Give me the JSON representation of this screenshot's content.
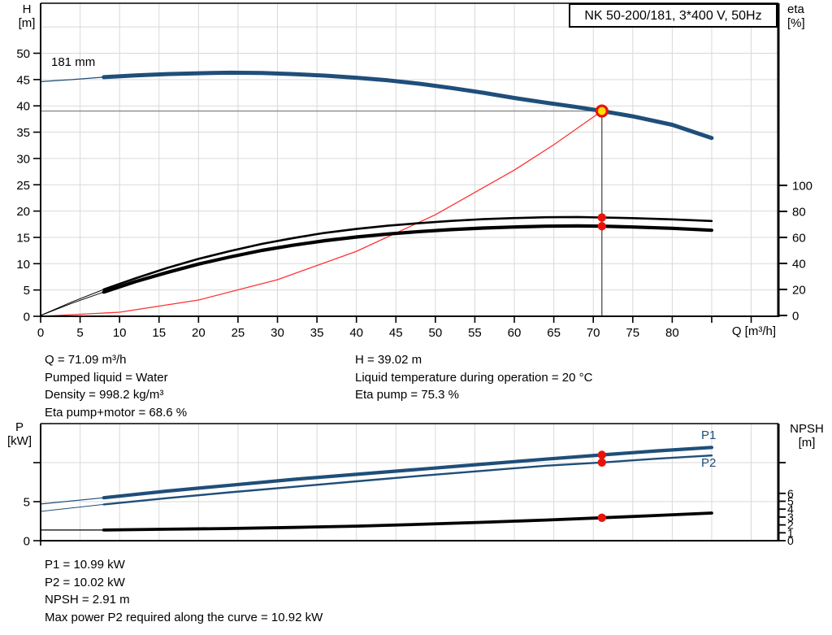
{
  "title_box": "NK 50-200/181, 3*400 V, 50Hz",
  "colors": {
    "curve_blue": "#1f4e79",
    "curve_black": "#000000",
    "system_red": "#ff3232",
    "dot_red": "#e8140c",
    "op_fill": "#ffdf00",
    "grid": "#d9d9d9",
    "ref_gray": "#8a8a8a",
    "drop_line": "#4d4d4d"
  },
  "top_chart": {
    "curve_label": "181 mm",
    "left_axis": {
      "title_line1": "H",
      "title_line2": "[m]",
      "ticks": [
        0,
        5,
        10,
        15,
        20,
        25,
        30,
        35,
        40,
        45,
        50
      ]
    },
    "right_axis": {
      "title_line1": "eta",
      "title_line2": "[%]",
      "ticks": [
        0,
        20,
        40,
        60,
        80,
        100
      ]
    },
    "x_axis": {
      "title": "Q [m³/h]",
      "labeled_ticks": [
        0,
        5,
        10,
        15,
        20,
        25,
        30,
        35,
        40,
        45,
        50,
        55,
        60,
        65,
        70,
        75,
        80
      ],
      "minor_ticks": [
        85,
        90
      ]
    }
  },
  "bottom_chart": {
    "left_axis": {
      "title_line1": "P",
      "title_line2": "[kW]",
      "ticks": [
        {
          "v": 0,
          "label": "0"
        },
        {
          "v": 5,
          "label": "5"
        },
        {
          "v": 10,
          "label": ""
        }
      ]
    },
    "right_axis": {
      "title_line1": "NPSH",
      "title_line2": "[m]",
      "ticks": [
        0,
        1,
        2,
        3,
        4,
        5,
        6
      ],
      "extra_unlabeled_tick_y_p": 10
    },
    "p1_label": "P1",
    "p2_label": "P2"
  },
  "operating_point": {
    "q": 71.09,
    "h": 39.02,
    "eta_pump": 75.3,
    "eta_pump_motor": 68.6,
    "p1": 10.99,
    "p2": 10.02,
    "npsh": 2.91
  },
  "chart_data": [
    {
      "type": "line",
      "title": "NK 50-200/181, 3*400 V, 50Hz",
      "xlabel": "Q [m³/h]",
      "ylabel_left": "H [m]",
      "ylabel_right": "eta [%]",
      "xlim": [
        0,
        93.5
      ],
      "ylim_left": [
        0,
        59.5
      ],
      "ylim_right": [
        0,
        100
      ],
      "grid": true,
      "series": [
        {
          "name": "head_181mm",
          "axis": "left",
          "color_key": "curve_blue",
          "points": [
            [
              0,
              44.6
            ],
            [
              4,
              45.0
            ],
            [
              8,
              45.45
            ],
            [
              12,
              45.8
            ],
            [
              16,
              46.05
            ],
            [
              20,
              46.2
            ],
            [
              24,
              46.3
            ],
            [
              28,
              46.25
            ],
            [
              32,
              46.05
            ],
            [
              36,
              45.75
            ],
            [
              40,
              45.35
            ],
            [
              44,
              44.85
            ],
            [
              48,
              44.2
            ],
            [
              52,
              43.4
            ],
            [
              56,
              42.5
            ],
            [
              60,
              41.5
            ],
            [
              64,
              40.6
            ],
            [
              68,
              39.75
            ],
            [
              71.09,
              39.02
            ],
            [
              75,
              38.0
            ],
            [
              80,
              36.4
            ],
            [
              85,
              33.9
            ]
          ]
        },
        {
          "name": "eta_pump",
          "axis": "right",
          "color_key": "curve_black",
          "points": [
            [
              0,
              0
            ],
            [
              4,
              10.5
            ],
            [
              8,
              20
            ],
            [
              12,
              28.5
            ],
            [
              16,
              36.5
            ],
            [
              20,
              43.5
            ],
            [
              24,
              49.5
            ],
            [
              28,
              55
            ],
            [
              32,
              59.5
            ],
            [
              36,
              63.5
            ],
            [
              40,
              66.5
            ],
            [
              44,
              69
            ],
            [
              48,
              71
            ],
            [
              52,
              72.7
            ],
            [
              56,
              74
            ],
            [
              60,
              74.9
            ],
            [
              64,
              75.5
            ],
            [
              68,
              75.7
            ],
            [
              71.09,
              75.3
            ],
            [
              75,
              74.8
            ],
            [
              80,
              73.9
            ],
            [
              85,
              72.6
            ]
          ]
        },
        {
          "name": "eta_pump_motor",
          "axis": "right",
          "color_key": "curve_black",
          "points": [
            [
              0,
              0
            ],
            [
              4,
              9.5
            ],
            [
              8,
              18
            ],
            [
              12,
              26
            ],
            [
              16,
              33
            ],
            [
              20,
              39.5
            ],
            [
              24,
              45
            ],
            [
              28,
              50
            ],
            [
              32,
              54
            ],
            [
              36,
              57.5
            ],
            [
              40,
              60.3
            ],
            [
              44,
              62.6
            ],
            [
              48,
              64.5
            ],
            [
              52,
              66
            ],
            [
              56,
              67.2
            ],
            [
              60,
              68
            ],
            [
              64,
              68.6
            ],
            [
              68,
              68.8
            ],
            [
              71.09,
              68.6
            ],
            [
              75,
              68
            ],
            [
              80,
              67
            ],
            [
              85,
              65.5
            ]
          ]
        },
        {
          "name": "system_curve",
          "axis": "left",
          "color_key": "system_red",
          "points": [
            [
              0,
              0
            ],
            [
              10,
              0.77
            ],
            [
              20,
              3.09
            ],
            [
              30,
              6.95
            ],
            [
              40,
              12.35
            ],
            [
              50,
              19.3
            ],
            [
              60,
              27.79
            ],
            [
              65,
              32.61
            ],
            [
              71.09,
              39.02
            ]
          ]
        }
      ]
    },
    {
      "type": "line",
      "title": "",
      "xlabel": "",
      "ylabel_left": "P [kW]",
      "ylabel_right": "NPSH [m]",
      "xlim": [
        0,
        93.5
      ],
      "ylim_left": [
        0,
        15
      ],
      "ylim_right": [
        0,
        14.8
      ],
      "grid": true,
      "series": [
        {
          "name": "P1",
          "axis": "left",
          "color_key": "curve_blue",
          "points": [
            [
              0,
              4.7
            ],
            [
              8,
              5.5
            ],
            [
              16,
              6.35
            ],
            [
              24,
              7.1
            ],
            [
              32,
              7.85
            ],
            [
              40,
              8.5
            ],
            [
              48,
              9.15
            ],
            [
              56,
              9.8
            ],
            [
              64,
              10.45
            ],
            [
              71.09,
              10.99
            ],
            [
              78,
              11.5
            ],
            [
              85,
              11.95
            ]
          ]
        },
        {
          "name": "P2",
          "axis": "left",
          "color_key": "curve_blue",
          "points": [
            [
              0,
              3.75
            ],
            [
              8,
              4.65
            ],
            [
              16,
              5.45
            ],
            [
              24,
              6.2
            ],
            [
              32,
              6.9
            ],
            [
              40,
              7.6
            ],
            [
              48,
              8.3
            ],
            [
              56,
              8.95
            ],
            [
              64,
              9.6
            ],
            [
              71.09,
              10.02
            ],
            [
              78,
              10.5
            ],
            [
              85,
              10.92
            ]
          ]
        },
        {
          "name": "NPSH",
          "axis": "right",
          "color_key": "curve_black",
          "points": [
            [
              0,
              1.35
            ],
            [
              8,
              1.35
            ],
            [
              16,
              1.45
            ],
            [
              24,
              1.55
            ],
            [
              32,
              1.68
            ],
            [
              40,
              1.85
            ],
            [
              48,
              2.07
            ],
            [
              56,
              2.33
            ],
            [
              64,
              2.62
            ],
            [
              71.09,
              2.91
            ],
            [
              78,
              3.2
            ],
            [
              85,
              3.5
            ]
          ]
        }
      ]
    }
  ],
  "info_top_left": [
    "Q = 71.09 m³/h",
    "Pumped liquid = Water",
    "Density = 998.2 kg/m³",
    "Eta pump+motor = 68.6 %"
  ],
  "info_top_right": [
    "H = 39.02 m",
    "Liquid temperature during operation = 20 °C",
    "Eta pump = 75.3 %"
  ],
  "info_bottom": [
    "P1 = 10.99 kW",
    "P2 = 10.02 kW",
    "NPSH = 2.91 m",
    "Max power P2 required along the curve = 10.92 kW"
  ]
}
